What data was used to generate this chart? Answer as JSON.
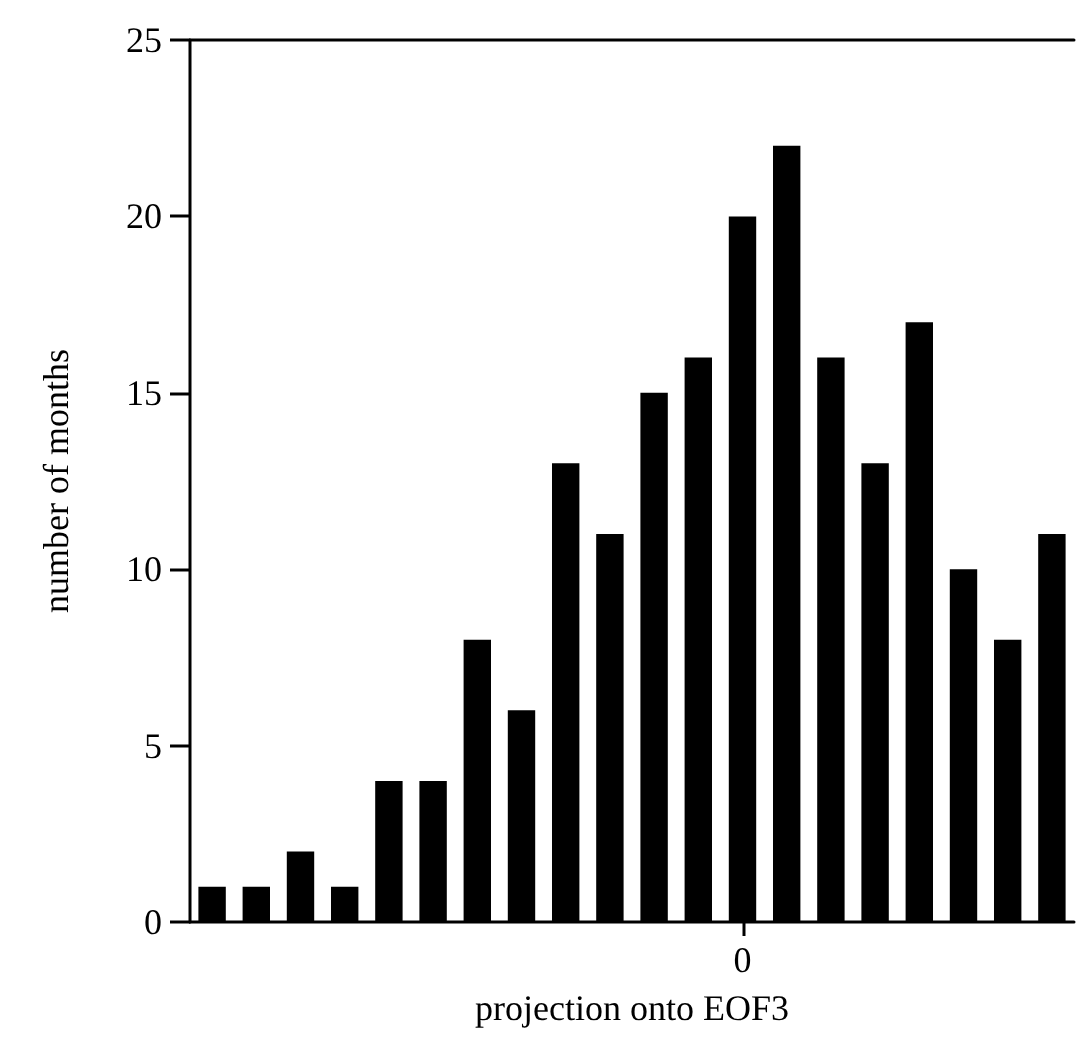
{
  "chart_data": {
    "type": "bar",
    "xlabel": "projection onto EOF3",
    "ylabel": "number of months",
    "categories": [
      null,
      null,
      null,
      null,
      null,
      null,
      null,
      null,
      null,
      null,
      null,
      null,
      "0",
      null,
      null,
      null,
      null,
      null,
      null,
      null
    ],
    "values": [
      1,
      1,
      2,
      1,
      4,
      4,
      8,
      6,
      13,
      11,
      15,
      16,
      20,
      22,
      16,
      13,
      17,
      10,
      8,
      11
    ],
    "color": "#000000",
    "ylim": [
      0,
      25
    ],
    "yticks": [
      0,
      5,
      10,
      15,
      20,
      25
    ],
    "grid": false
  }
}
